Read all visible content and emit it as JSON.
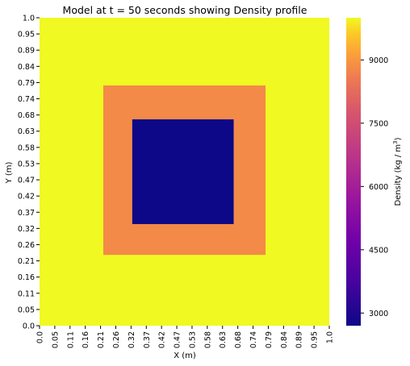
{
  "chart_data": {
    "type": "heatmap",
    "title": "Model at t = 50 seconds showing Density profile",
    "xlabel": "X (m)",
    "ylabel": "Y (m)",
    "x_ticks": [
      "0.0",
      "0.05",
      "0.11",
      "0.16",
      "0.21",
      "0.26",
      "0.32",
      "0.37",
      "0.42",
      "0.47",
      "0.53",
      "0.58",
      "0.63",
      "0.68",
      "0.74",
      "0.79",
      "0.84",
      "0.89",
      "0.95",
      "1.0"
    ],
    "y_ticks": [
      "1.0",
      "0.95",
      "0.89",
      "0.84",
      "0.79",
      "0.74",
      "0.68",
      "0.63",
      "0.58",
      "0.53",
      "0.47",
      "0.42",
      "0.37",
      "0.32",
      "0.26",
      "0.21",
      "0.16",
      "0.11",
      "0.05",
      "0.0"
    ],
    "xlim": [
      0,
      1
    ],
    "ylim": [
      0,
      1
    ],
    "regions": [
      {
        "name": "background",
        "x_range": [
          0.0,
          1.0
        ],
        "y_range": [
          0.0,
          1.0
        ],
        "density": 10000
      },
      {
        "name": "outer-square",
        "x_range": [
          0.22,
          0.78
        ],
        "y_range": [
          0.23,
          0.78
        ],
        "density": 8800
      },
      {
        "name": "inner-square",
        "x_range": [
          0.32,
          0.67
        ],
        "y_range": [
          0.33,
          0.67
        ],
        "density": 2700
      }
    ],
    "colorbar": {
      "label": "Density (kg / m",
      "label_sup": "3",
      "label_end": ")",
      "colormap": "plasma",
      "vmin": 2700,
      "vmax": 10000,
      "ticks": [
        "3000",
        "4500",
        "6000",
        "7500",
        "9000"
      ]
    }
  }
}
